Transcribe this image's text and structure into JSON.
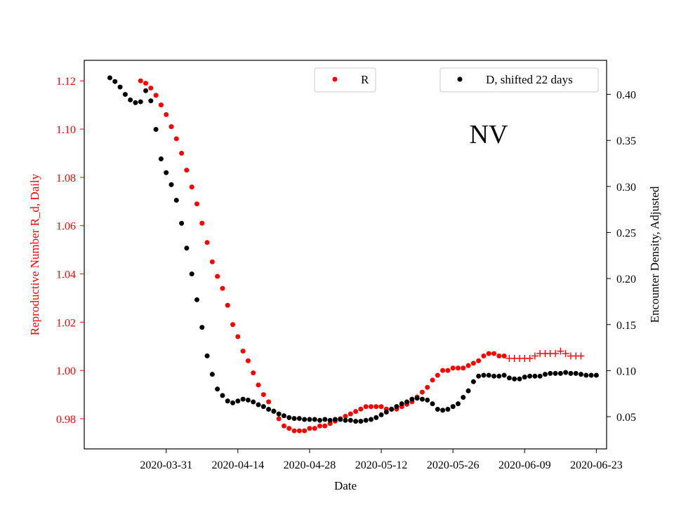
{
  "chart_data": {
    "type": "scatter",
    "annotation": "NV",
    "xlabel": "Date",
    "ylabel_left": "Reproductive Number R_d, Daily",
    "ylabel_right": "Encounter Density, Adjusted",
    "x_ticks": [
      "2020-03-31",
      "2020-04-14",
      "2020-04-28",
      "2020-05-12",
      "2020-05-26",
      "2020-06-09",
      "2020-06-23"
    ],
    "y_left_ticks": [
      "0.98",
      "1.00",
      "1.02",
      "1.04",
      "1.06",
      "1.08",
      "1.10",
      "1.12"
    ],
    "y_right_ticks": [
      "0.05",
      "0.10",
      "0.15",
      "0.20",
      "0.25",
      "0.30",
      "0.35",
      "0.40"
    ],
    "y_left_range": [
      0.9675,
      1.1285
    ],
    "y_right_range": [
      0.015,
      0.437
    ],
    "x_range": [
      "2020-03-15",
      "2020-06-25"
    ],
    "legend_left": {
      "label": "R",
      "color": "#ff0000"
    },
    "legend_right": {
      "label": "D, shifted 22 days",
      "color": "#000000"
    },
    "colors": {
      "r": "#ff0000",
      "d": "#000000",
      "r_axis": "#ff0000",
      "d_axis": "#000000"
    },
    "series": [
      {
        "name": "R",
        "axis": "left",
        "color": "#ff0000",
        "x": [
          "2020-03-26",
          "2020-03-27",
          "2020-03-28",
          "2020-03-29",
          "2020-03-30",
          "2020-03-31",
          "2020-04-01",
          "2020-04-02",
          "2020-04-03",
          "2020-04-04",
          "2020-04-05",
          "2020-04-06",
          "2020-04-07",
          "2020-04-08",
          "2020-04-09",
          "2020-04-10",
          "2020-04-11",
          "2020-04-12",
          "2020-04-13",
          "2020-04-14",
          "2020-04-15",
          "2020-04-16",
          "2020-04-17",
          "2020-04-18",
          "2020-04-19",
          "2020-04-20",
          "2020-04-21",
          "2020-04-22",
          "2020-04-23",
          "2020-04-24",
          "2020-04-25",
          "2020-04-26",
          "2020-04-27",
          "2020-04-28",
          "2020-04-29",
          "2020-04-30",
          "2020-05-01",
          "2020-05-02",
          "2020-05-03",
          "2020-05-04",
          "2020-05-05",
          "2020-05-06",
          "2020-05-07",
          "2020-05-08",
          "2020-05-09",
          "2020-05-10",
          "2020-05-11",
          "2020-05-12",
          "2020-05-13",
          "2020-05-14",
          "2020-05-15",
          "2020-05-16",
          "2020-05-17",
          "2020-05-18",
          "2020-05-19",
          "2020-05-20",
          "2020-05-21",
          "2020-05-22",
          "2020-05-23",
          "2020-05-24",
          "2020-05-25",
          "2020-05-26",
          "2020-05-27",
          "2020-05-28",
          "2020-05-29",
          "2020-05-30",
          "2020-05-31",
          "2020-06-01",
          "2020-06-02",
          "2020-06-03",
          "2020-06-04",
          "2020-06-05"
        ],
        "y": [
          1.12,
          1.119,
          1.117,
          1.114,
          1.11,
          1.106,
          1.101,
          1.096,
          1.09,
          1.083,
          1.076,
          1.069,
          1.061,
          1.053,
          1.045,
          1.039,
          1.034,
          1.027,
          1.019,
          1.014,
          1.008,
          1.004,
          0.999,
          0.994,
          0.99,
          0.987,
          0.983,
          0.98,
          0.977,
          0.976,
          0.975,
          0.975,
          0.975,
          0.976,
          0.976,
          0.977,
          0.977,
          0.978,
          0.979,
          0.98,
          0.981,
          0.982,
          0.983,
          0.984,
          0.985,
          0.985,
          0.985,
          0.985,
          0.984,
          0.984,
          0.984,
          0.985,
          0.986,
          0.987,
          0.989,
          0.991,
          0.993,
          0.996,
          0.998,
          1.0,
          1.0,
          1.001,
          1.001,
          1.001,
          1.002,
          1.003,
          1.004,
          1.006,
          1.007,
          1.007,
          1.006,
          1.006
        ]
      },
      {
        "name": "R",
        "axis": "left",
        "marker": "plus",
        "color": "#ff0000",
        "x": [
          "2020-06-06",
          "2020-06-07",
          "2020-06-08",
          "2020-06-09",
          "2020-06-10",
          "2020-06-11",
          "2020-06-12",
          "2020-06-13",
          "2020-06-14",
          "2020-06-15",
          "2020-06-16",
          "2020-06-17",
          "2020-06-18",
          "2020-06-19",
          "2020-06-20"
        ],
        "y": [
          1.005,
          1.005,
          1.005,
          1.005,
          1.005,
          1.006,
          1.007,
          1.007,
          1.007,
          1.007,
          1.008,
          1.007,
          1.006,
          1.006,
          1.006
        ]
      },
      {
        "name": "D, shifted 22 days",
        "axis": "right",
        "color": "#000000",
        "x": [
          "2020-03-20",
          "2020-03-21",
          "2020-03-22",
          "2020-03-23",
          "2020-03-24",
          "2020-03-25",
          "2020-03-26",
          "2020-03-27",
          "2020-03-28",
          "2020-03-29",
          "2020-03-30",
          "2020-03-31",
          "2020-04-01",
          "2020-04-02",
          "2020-04-03",
          "2020-04-04",
          "2020-04-05",
          "2020-04-06",
          "2020-04-07",
          "2020-04-08",
          "2020-04-09",
          "2020-04-10",
          "2020-04-11",
          "2020-04-12",
          "2020-04-13",
          "2020-04-14",
          "2020-04-15",
          "2020-04-16",
          "2020-04-17",
          "2020-04-18",
          "2020-04-19",
          "2020-04-20",
          "2020-04-21",
          "2020-04-22",
          "2020-04-23",
          "2020-04-24",
          "2020-04-25",
          "2020-04-26",
          "2020-04-27",
          "2020-04-28",
          "2020-04-29",
          "2020-04-30",
          "2020-05-01",
          "2020-05-02",
          "2020-05-03",
          "2020-05-04",
          "2020-05-05",
          "2020-05-06",
          "2020-05-07",
          "2020-05-08",
          "2020-05-09",
          "2020-05-10",
          "2020-05-11",
          "2020-05-12",
          "2020-05-13",
          "2020-05-14",
          "2020-05-15",
          "2020-05-16",
          "2020-05-17",
          "2020-05-18",
          "2020-05-19",
          "2020-05-20",
          "2020-05-21",
          "2020-05-22",
          "2020-05-23",
          "2020-05-24",
          "2020-05-25",
          "2020-05-26",
          "2020-05-27",
          "2020-05-28",
          "2020-05-29",
          "2020-05-30",
          "2020-05-31",
          "2020-06-01",
          "2020-06-02",
          "2020-06-03",
          "2020-06-04",
          "2020-06-05",
          "2020-06-06",
          "2020-06-07",
          "2020-06-08",
          "2020-06-09",
          "2020-06-10",
          "2020-06-11",
          "2020-06-12",
          "2020-06-13",
          "2020-06-14",
          "2020-06-15",
          "2020-06-16",
          "2020-06-17",
          "2020-06-18",
          "2020-06-19",
          "2020-06-20",
          "2020-06-21",
          "2020-06-22",
          "2020-06-23"
        ],
        "y": [
          0.418,
          0.414,
          0.408,
          0.4,
          0.394,
          0.391,
          0.392,
          0.404,
          0.393,
          0.362,
          0.33,
          0.315,
          0.302,
          0.285,
          0.26,
          0.233,
          0.205,
          0.177,
          0.147,
          0.116,
          0.096,
          0.08,
          0.073,
          0.067,
          0.065,
          0.067,
          0.069,
          0.068,
          0.066,
          0.063,
          0.061,
          0.058,
          0.056,
          0.053,
          0.051,
          0.049,
          0.048,
          0.048,
          0.047,
          0.047,
          0.047,
          0.046,
          0.047,
          0.046,
          0.047,
          0.047,
          0.046,
          0.046,
          0.045,
          0.045,
          0.046,
          0.047,
          0.049,
          0.052,
          0.055,
          0.058,
          0.061,
          0.064,
          0.066,
          0.069,
          0.07,
          0.069,
          0.068,
          0.064,
          0.058,
          0.057,
          0.058,
          0.061,
          0.064,
          0.071,
          0.078,
          0.088,
          0.094,
          0.095,
          0.095,
          0.094,
          0.094,
          0.095,
          0.092,
          0.091,
          0.091,
          0.093,
          0.094,
          0.094,
          0.094,
          0.096,
          0.097,
          0.097,
          0.097,
          0.098,
          0.097,
          0.097,
          0.096,
          0.095,
          0.095,
          0.095
        ]
      }
    ]
  }
}
